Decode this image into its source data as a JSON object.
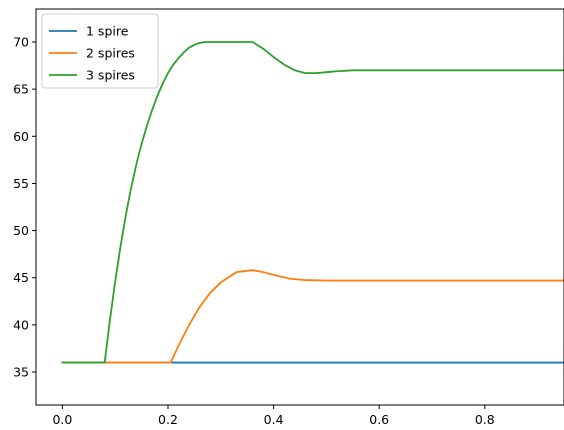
{
  "chart_data": {
    "type": "line",
    "title": "",
    "xlabel": "",
    "ylabel": "",
    "xlim": [
      -0.05,
      0.95
    ],
    "ylim": [
      31.5,
      73.5
    ],
    "xticks": [
      0.0,
      0.2,
      0.4,
      0.6,
      0.8
    ],
    "xtick_labels": [
      "0.0",
      "0.2",
      "0.4",
      "0.6",
      "0.8"
    ],
    "yticks": [
      35,
      40,
      45,
      50,
      55,
      60,
      65,
      70
    ],
    "ytick_labels": [
      "35",
      "40",
      "45",
      "50",
      "55",
      "60",
      "65",
      "70"
    ],
    "grid": false,
    "legend": {
      "placement": "top-left"
    },
    "series": [
      {
        "name": "1 spire",
        "color": "#1f77b4",
        "x": [
          0.0,
          0.1,
          0.2,
          0.3,
          0.4,
          0.5,
          0.6,
          0.7,
          0.8,
          0.95
        ],
        "y": [
          36,
          36,
          36,
          36,
          36,
          36,
          36,
          36,
          36,
          36
        ]
      },
      {
        "name": "2 spires",
        "color": "#ff7f0e",
        "x": [
          0.0,
          0.1,
          0.2,
          0.205,
          0.22,
          0.24,
          0.26,
          0.28,
          0.3,
          0.33,
          0.36,
          0.38,
          0.4,
          0.43,
          0.46,
          0.5,
          0.55,
          0.6,
          0.7,
          0.8,
          0.95
        ],
        "y": [
          36,
          36,
          36,
          36,
          37.8,
          40.0,
          41.9,
          43.4,
          44.5,
          45.6,
          45.8,
          45.6,
          45.3,
          44.9,
          44.75,
          44.7,
          44.7,
          44.7,
          44.7,
          44.7,
          44.7
        ]
      },
      {
        "name": "3 spires",
        "color": "#2ca02c",
        "x": [
          0.0,
          0.04,
          0.08,
          0.09,
          0.1,
          0.11,
          0.12,
          0.13,
          0.14,
          0.15,
          0.16,
          0.17,
          0.18,
          0.19,
          0.2,
          0.21,
          0.22,
          0.23,
          0.24,
          0.25,
          0.26,
          0.27,
          0.3,
          0.33,
          0.36,
          0.38,
          0.4,
          0.42,
          0.44,
          0.46,
          0.48,
          0.5,
          0.52,
          0.55,
          0.6,
          0.7,
          0.8,
          0.95
        ],
        "y": [
          36,
          36,
          36,
          40.5,
          44.6,
          48.3,
          51.6,
          54.5,
          57.0,
          59.2,
          61.1,
          62.8,
          64.3,
          65.6,
          66.7,
          67.6,
          68.3,
          68.9,
          69.4,
          69.7,
          69.9,
          70.0,
          70.0,
          70.0,
          70.0,
          69.3,
          68.4,
          67.6,
          67.0,
          66.7,
          66.7,
          66.8,
          66.9,
          67.0,
          67.0,
          67.0,
          67.0,
          67.0
        ]
      }
    ]
  }
}
